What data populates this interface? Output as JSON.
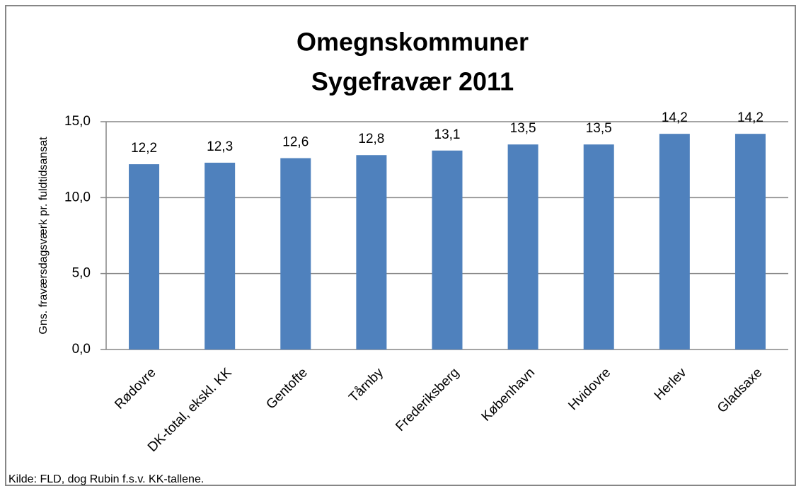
{
  "chart_data": {
    "type": "bar",
    "title": "Omegnskommuner",
    "subtitle": "Sygefravær 2011",
    "y_label": "Gns. fraværsdagsværk pr. fuldtidsansat",
    "source": "Kilde: FLD, dog Rubin f.s.v. KK-tallene.",
    "categories": [
      "Rødovre",
      "DK-total, ekskl. KK",
      "Gentofte",
      "Tårnby",
      "Frederiksberg",
      "København",
      "Hvidovre",
      "Herlev",
      "Gladsaxe"
    ],
    "values": [
      12.2,
      12.3,
      12.6,
      12.8,
      13.1,
      13.5,
      13.5,
      14.2,
      14.2
    ],
    "value_labels": [
      "12,2",
      "12,3",
      "12,6",
      "12,8",
      "13,1",
      "13,5",
      "13,5",
      "14,2",
      "14,2"
    ],
    "color": "#4f81bd",
    "ylim": [
      0,
      15
    ],
    "yticks": [
      {
        "value": 0,
        "label": "0,0"
      },
      {
        "value": 5,
        "label": "5,0"
      },
      {
        "value": 10,
        "label": "10,0"
      },
      {
        "value": 15,
        "label": "15,0"
      }
    ],
    "grid": true
  }
}
